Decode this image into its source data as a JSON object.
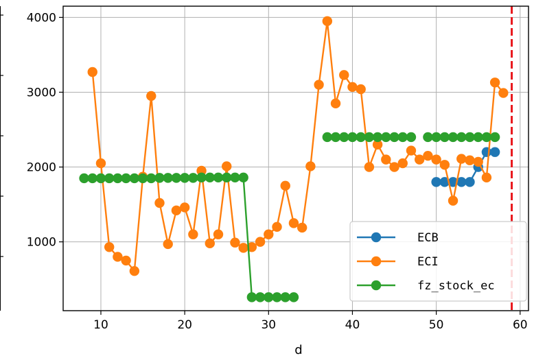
{
  "chart_data": {
    "type": "line",
    "xlabel": "d",
    "ylabel": "",
    "xlim": [
      5.5,
      61
    ],
    "ylim": [
      80,
      4150
    ],
    "xticks": [
      10,
      20,
      30,
      40,
      50,
      60
    ],
    "xtick_labels": [
      "10",
      "20",
      "30",
      "40",
      "50",
      "60"
    ],
    "yticks": [
      1000,
      2000,
      3000,
      4000
    ],
    "ytick_labels": [
      "1000",
      "2000",
      "3000",
      "4000"
    ],
    "grid": true,
    "legend_position": "lower-right",
    "vline": {
      "x": 59,
      "color": "#e8161b",
      "style": "dashed"
    },
    "series": [
      {
        "name": "ECB",
        "color": "#1f77b4",
        "points": [
          [
            50,
            1800
          ],
          [
            51,
            1800
          ],
          [
            52,
            1800
          ],
          [
            53,
            1800
          ],
          [
            54,
            1800
          ],
          [
            55,
            2000
          ],
          [
            56,
            2200
          ],
          [
            57,
            2200
          ]
        ]
      },
      {
        "name": "ECI",
        "color": "#ff7f0e",
        "points": [
          [
            9,
            3270
          ],
          [
            10,
            2050
          ],
          [
            11,
            930
          ],
          [
            12,
            800
          ],
          [
            13,
            750
          ],
          [
            14,
            610
          ],
          [
            15,
            1870
          ],
          [
            16,
            2950
          ],
          [
            17,
            1520
          ],
          [
            18,
            970
          ],
          [
            19,
            1420
          ],
          [
            20,
            1460
          ],
          [
            21,
            1100
          ],
          [
            22,
            1950
          ],
          [
            23,
            980
          ],
          [
            24,
            1100
          ],
          [
            25,
            2010
          ],
          [
            26,
            990
          ],
          [
            27,
            920
          ],
          [
            28,
            930
          ],
          [
            29,
            1000
          ],
          [
            30,
            1100
          ],
          [
            31,
            1200
          ],
          [
            32,
            1750
          ],
          [
            33,
            1250
          ],
          [
            34,
            1190
          ],
          [
            35,
            2010
          ],
          [
            36,
            3100
          ],
          [
            37,
            3950
          ],
          [
            38,
            2850
          ],
          [
            39,
            3230
          ],
          [
            40,
            3070
          ],
          [
            41,
            3040
          ],
          [
            42,
            2000
          ],
          [
            43,
            2300
          ],
          [
            44,
            2100
          ],
          [
            45,
            2000
          ],
          [
            46,
            2050
          ],
          [
            47,
            2220
          ],
          [
            48,
            2100
          ],
          [
            49,
            2150
          ],
          [
            50,
            2100
          ],
          [
            51,
            2030
          ],
          [
            52,
            1550
          ],
          [
            53,
            2110
          ],
          [
            54,
            2090
          ],
          [
            55,
            2070
          ],
          [
            56,
            1860
          ],
          [
            57,
            3130
          ],
          [
            58,
            2990
          ]
        ]
      },
      {
        "name": "fz_stock_ec",
        "color": "#2ca02c",
        "points": [
          [
            8,
            1850
          ],
          [
            9,
            1850
          ],
          [
            10,
            1850
          ],
          [
            11,
            1850
          ],
          [
            12,
            1850
          ],
          [
            13,
            1850
          ],
          [
            14,
            1850
          ],
          [
            15,
            1850
          ],
          [
            16,
            1850
          ],
          [
            17,
            1855
          ],
          [
            18,
            1855
          ],
          [
            19,
            1855
          ],
          [
            20,
            1855
          ],
          [
            21,
            1855
          ],
          [
            22,
            1860
          ],
          [
            23,
            1860
          ],
          [
            24,
            1860
          ],
          [
            25,
            1860
          ],
          [
            26,
            1860
          ],
          [
            27,
            1860
          ],
          [
            28,
            260
          ],
          [
            29,
            260
          ],
          [
            30,
            260
          ],
          [
            31,
            260
          ],
          [
            32,
            260
          ],
          [
            33,
            260
          ],
          null,
          [
            37,
            2400
          ],
          [
            38,
            2400
          ],
          [
            39,
            2400
          ],
          [
            40,
            2400
          ],
          [
            41,
            2400
          ],
          [
            42,
            2400
          ],
          [
            43,
            2400
          ],
          [
            44,
            2400
          ],
          [
            45,
            2400
          ],
          [
            46,
            2400
          ],
          [
            47,
            2400
          ],
          null,
          [
            49,
            2400
          ],
          [
            50,
            2400
          ],
          [
            51,
            2400
          ],
          [
            52,
            2400
          ],
          [
            53,
            2400
          ],
          [
            54,
            2400
          ],
          [
            55,
            2400
          ],
          [
            56,
            2400
          ],
          [
            57,
            2400
          ]
        ]
      }
    ]
  }
}
